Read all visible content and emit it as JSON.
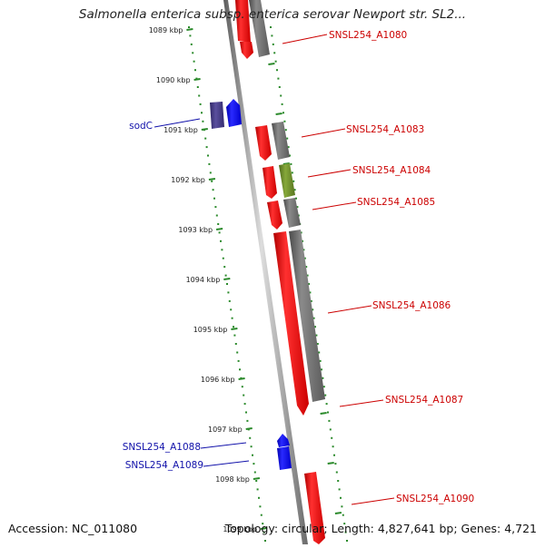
{
  "header": {
    "title": "Salmonella enterica subsp. enterica serovar Newport str. SL2..."
  },
  "footer": {
    "accession": "Accession: NC_011080",
    "summary": "Topology: circular; Length: 4,827,641 bp; Genes: 4,721"
  },
  "scale": {
    "ticks": [
      "1089 kbp",
      "1090 kbp",
      "1091 kbp",
      "1092 kbp",
      "1093 kbp",
      "1094 kbp",
      "1095 kbp",
      "1096 kbp",
      "1097 kbp",
      "1098 kbp",
      "1099 kbp"
    ]
  },
  "colors": {
    "forward_cds": "#ee1111",
    "reverse_cds": "#1d1df5",
    "forward_feature": "#757575",
    "reverse_feature": "#4a3f8a",
    "rrna_like": "#6e8f2e",
    "backbone": "#8a8a8a",
    "dots": "#2b8a2b",
    "label_forward": "#cc0000",
    "label_reverse": "#1111aa"
  },
  "labels": {
    "sodC": "sodC",
    "a1080": "SNSL254_A1080",
    "a1083": "SNSL254_A1083",
    "a1084": "SNSL254_A1084",
    "a1085": "SNSL254_A1085",
    "a1086": "SNSL254_A1086",
    "a1087": "SNSL254_A1087",
    "a1088": "SNSL254_A1088",
    "a1089": "SNSL254_A1089",
    "a1090": "SNSL254_A1090"
  }
}
